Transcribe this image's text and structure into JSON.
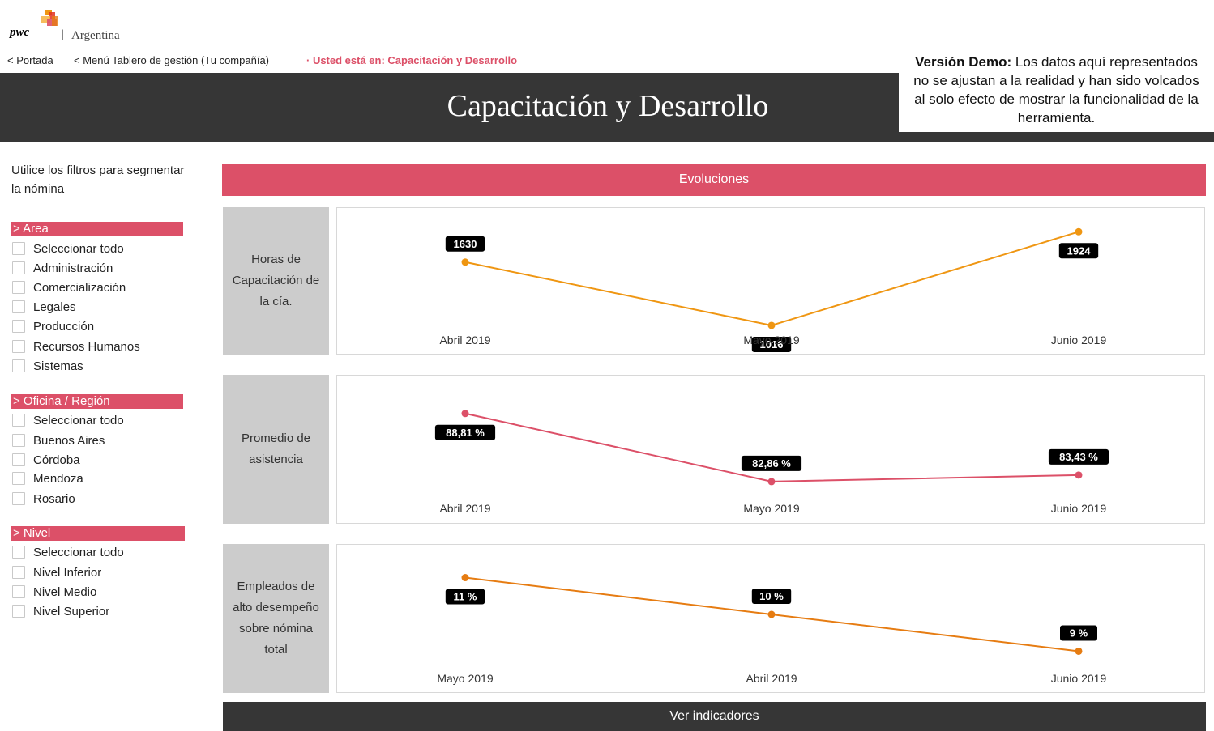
{
  "brand": {
    "name": "pwc",
    "country": "Argentina",
    "separator": "|"
  },
  "nav": {
    "portada": "< Portada",
    "menu": "< Menú Tablero de gestión (Tu compañía)",
    "location": "· Usted está en: Capacitación y Desarrollo"
  },
  "header": {
    "title": "Capacitación y Desarrollo"
  },
  "demo": {
    "lead": "Versión Demo:",
    "text": " Los datos aquí representados no se ajustan a la realidad y han sido volcados al solo efecto de mostrar la funcionalidad de la herramienta."
  },
  "filters": {
    "intro": "Utilice los filtros para segmentar la nómina",
    "groups": [
      {
        "title": "> Area",
        "items": [
          "Seleccionar todo",
          "Administración",
          "Comercialización",
          "Legales",
          "Producción",
          "Recursos Humanos",
          "Sistemas"
        ]
      },
      {
        "title": "> Oficina / Región",
        "items": [
          "Seleccionar todo",
          "Buenos Aires",
          "Córdoba",
          "Mendoza",
          "Rosario"
        ]
      },
      {
        "title": "> Nivel",
        "items": [
          "Seleccionar todo",
          "Nivel Inferior",
          "Nivel Medio",
          "Nivel Superior"
        ]
      }
    ]
  },
  "section": {
    "title": "Evoluciones"
  },
  "footer": {
    "button": "Ver indicadores"
  },
  "colors": {
    "accent": "#dc5068",
    "dark": "#363636",
    "line1": "#ef9612",
    "line2": "#dc5068",
    "line3": "#e67c12"
  },
  "chart_data": [
    {
      "type": "line",
      "title": "Horas de Capacitación de la cía.",
      "categories": [
        "Abril 2019",
        "Mayo 2019",
        "Junio 2019"
      ],
      "values": [
        1630,
        1016,
        1924
      ],
      "labels": [
        "1630",
        "1016",
        "1924"
      ],
      "ylim": [
        1000,
        1950
      ],
      "grid": false,
      "legend": "none"
    },
    {
      "type": "line",
      "title": "Promedio de asistencia",
      "categories": [
        "Abril 2019",
        "Mayo 2019",
        "Junio 2019"
      ],
      "values": [
        88.81,
        82.86,
        83.43
      ],
      "labels": [
        "88,81 %",
        "82,86 %",
        "83,43 %"
      ],
      "ylim": [
        82.5,
        89.5
      ],
      "grid": false,
      "legend": "none"
    },
    {
      "type": "line",
      "title": "Empleados de alto desempeño sobre nómina total",
      "categories": [
        "Mayo 2019",
        "Abril 2019",
        "Junio 2019"
      ],
      "values": [
        11,
        10,
        9
      ],
      "labels": [
        "11 %",
        "10 %",
        "9 %"
      ],
      "ylim": [
        8.9,
        11.1
      ],
      "grid": false,
      "legend": "none"
    }
  ]
}
